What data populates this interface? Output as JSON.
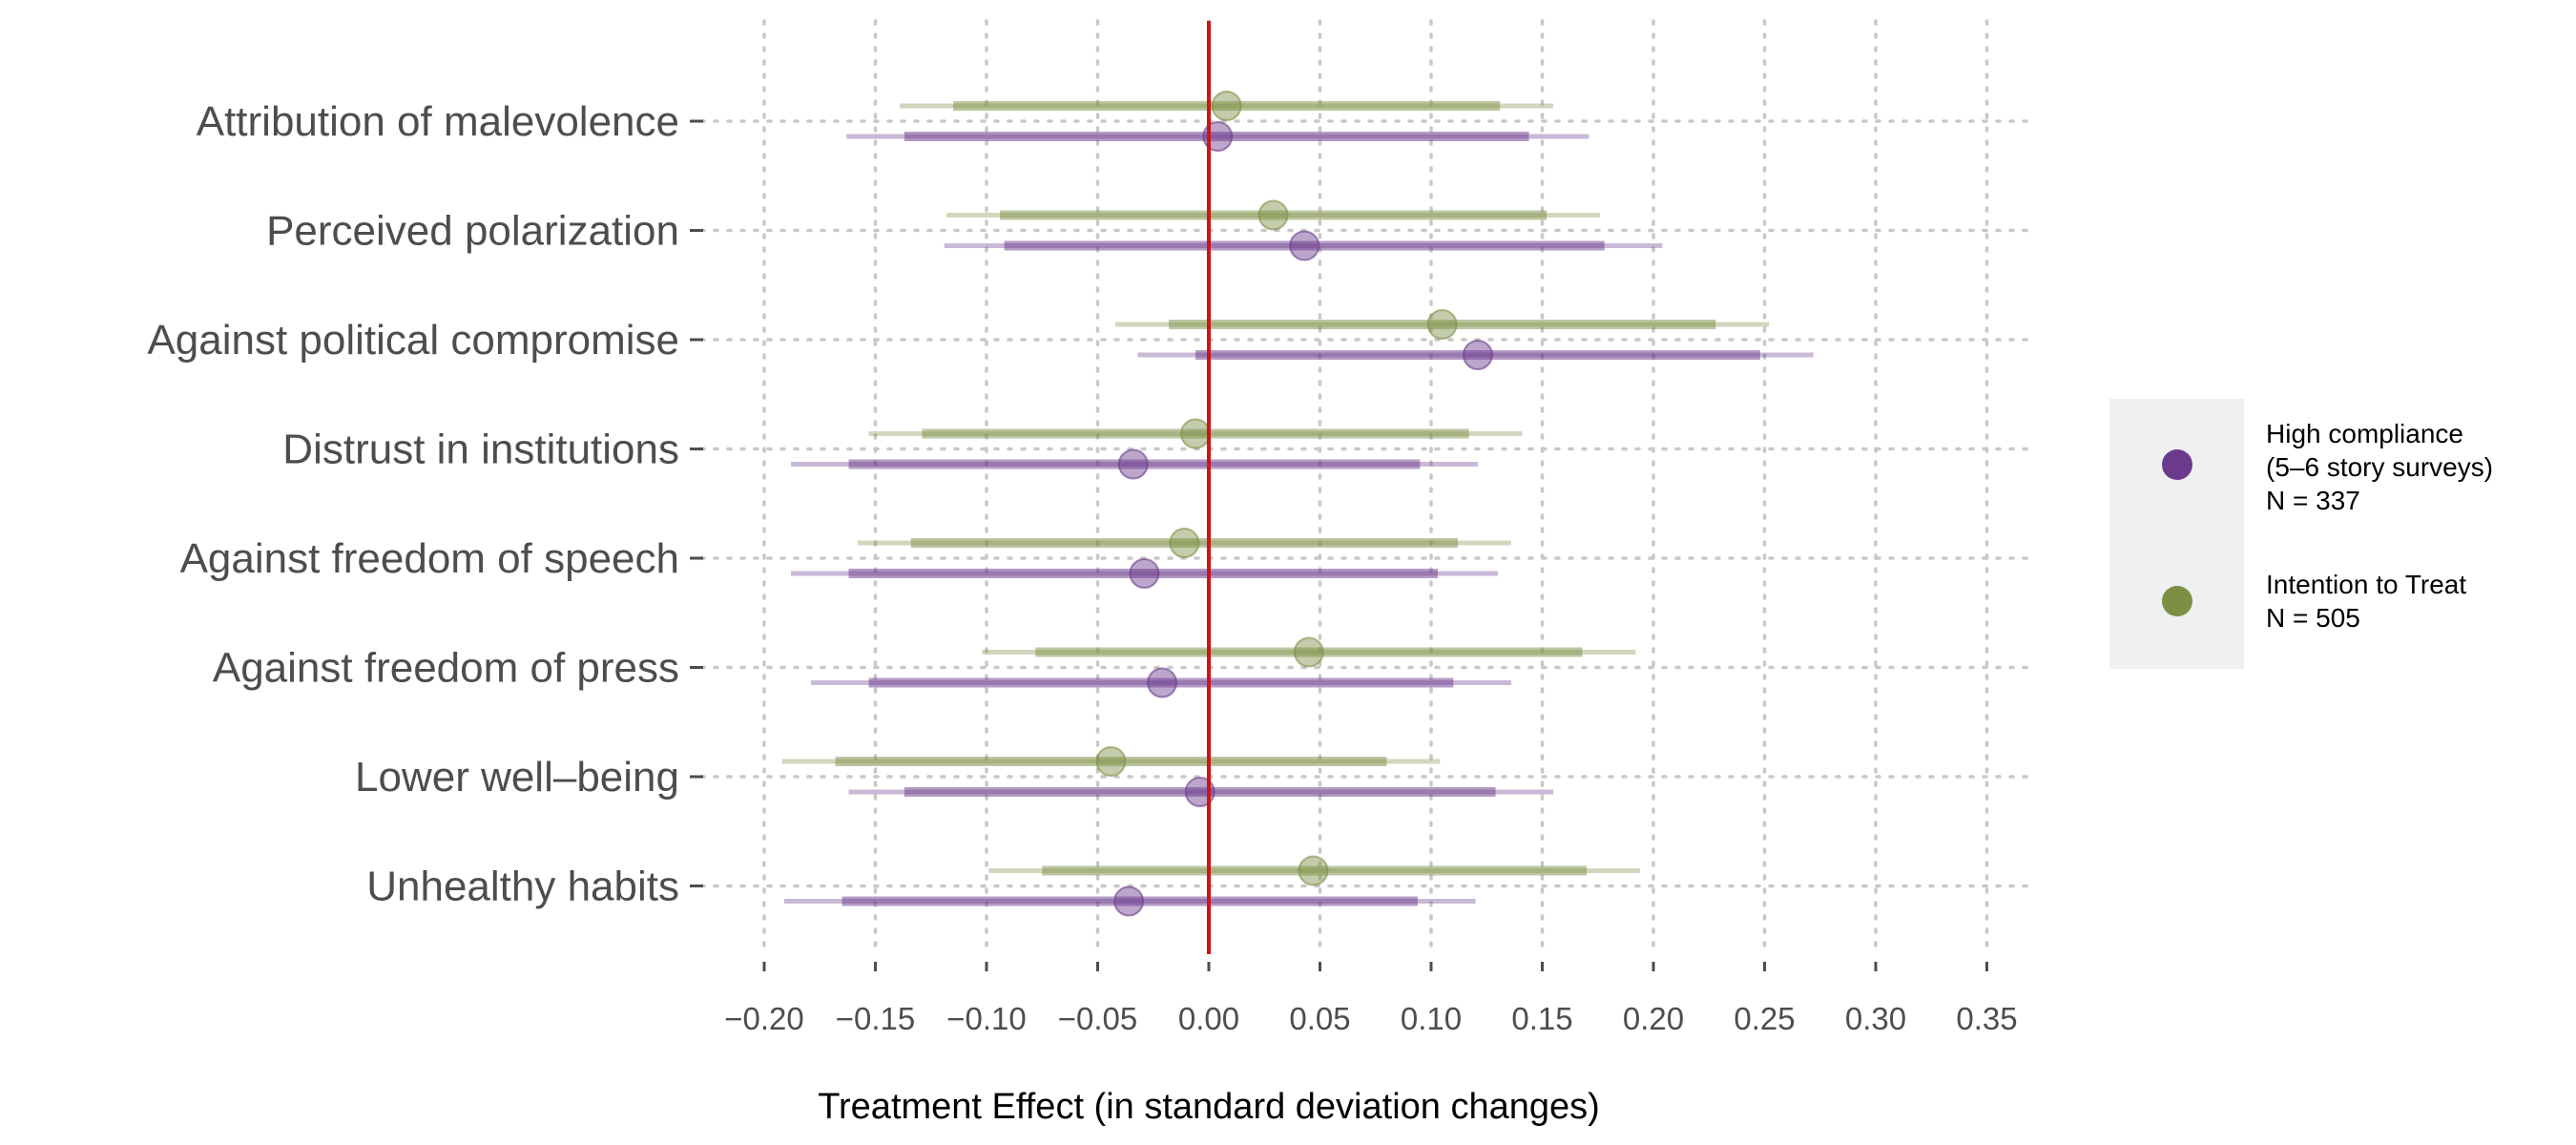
{
  "chart_data": {
    "type": "scatter",
    "subtype": "coefficient-plot",
    "xlabel": "Treatment Effect (in standard deviation changes)",
    "xlim": [
      -0.22,
      0.375
    ],
    "x_ticks": [
      -0.2,
      -0.15,
      -0.1,
      -0.05,
      0.0,
      0.05,
      0.1,
      0.15,
      0.2,
      0.25,
      0.3,
      0.35
    ],
    "x_tick_labels": [
      "−0.20",
      "−0.15",
      "−0.10",
      "−0.05",
      "0.00",
      "0.05",
      "0.10",
      "0.15",
      "0.20",
      "0.25",
      "0.30",
      "0.35"
    ],
    "reference_line": {
      "x": 0.0,
      "color": "#cc1414"
    },
    "grid": true,
    "legend_position": "right",
    "categories": [
      "Attribution of malevolence",
      "Perceived polarization",
      "Against political compromise",
      "Distrust in institutions",
      "Against freedom of speech",
      "Against freedom of press",
      "Lower well–being",
      "Unhealthy habits"
    ],
    "series": [
      {
        "name": "Intention to Treat",
        "name_lines": [
          "Intention to Treat",
          "N = 505"
        ],
        "color": "#7d8f45",
        "estimates": [
          0.008,
          0.029,
          0.105,
          -0.006,
          -0.011,
          0.045,
          -0.044,
          0.047
        ],
        "ci_inner": [
          [
            -0.115,
            0.131
          ],
          [
            -0.094,
            0.152
          ],
          [
            -0.018,
            0.228
          ],
          [
            -0.129,
            0.117
          ],
          [
            -0.134,
            0.112
          ],
          [
            -0.078,
            0.168
          ],
          [
            -0.168,
            0.08
          ],
          [
            -0.075,
            0.17
          ]
        ],
        "ci_outer": [
          [
            -0.139,
            0.155
          ],
          [
            -0.118,
            0.176
          ],
          [
            -0.042,
            0.252
          ],
          [
            -0.153,
            0.141
          ],
          [
            -0.158,
            0.136
          ],
          [
            -0.102,
            0.192
          ],
          [
            -0.192,
            0.104
          ],
          [
            -0.099,
            0.194
          ]
        ]
      },
      {
        "name": "High compliance (5–6 story surveys)",
        "name_lines": [
          "High compliance",
          "(5–6 story surveys)",
          "N = 337"
        ],
        "color": "#6b3a8c",
        "estimates": [
          0.004,
          0.043,
          0.121,
          -0.034,
          -0.029,
          -0.021,
          -0.004,
          -0.036
        ],
        "ci_inner": [
          [
            -0.137,
            0.144
          ],
          [
            -0.092,
            0.178
          ],
          [
            -0.006,
            0.248
          ],
          [
            -0.162,
            0.095
          ],
          [
            -0.162,
            0.103
          ],
          [
            -0.153,
            0.11
          ],
          [
            -0.137,
            0.129
          ],
          [
            -0.165,
            0.094
          ]
        ],
        "ci_outer": [
          [
            -0.163,
            0.171
          ],
          [
            -0.119,
            0.204
          ],
          [
            -0.032,
            0.272
          ],
          [
            -0.188,
            0.121
          ],
          [
            -0.188,
            0.13
          ],
          [
            -0.179,
            0.136
          ],
          [
            -0.162,
            0.155
          ],
          [
            -0.191,
            0.12
          ]
        ]
      }
    ]
  }
}
